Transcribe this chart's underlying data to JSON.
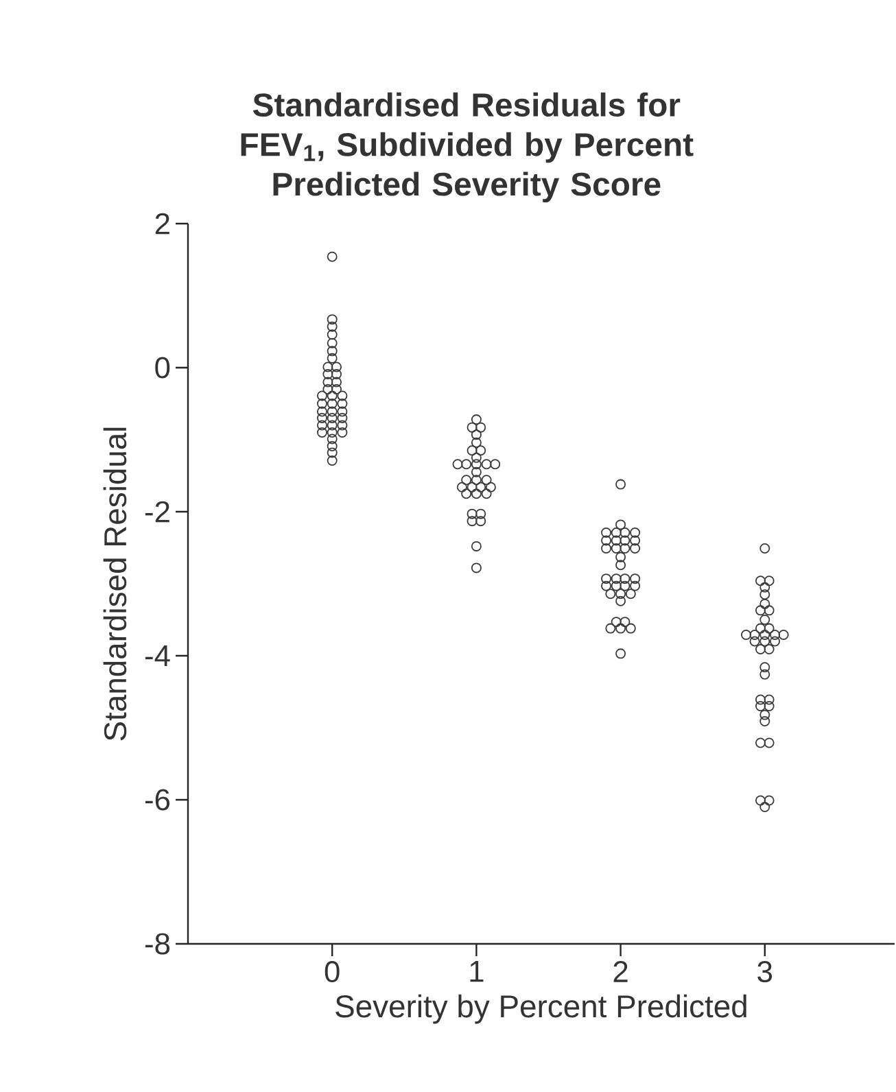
{
  "chart_data": {
    "type": "scatter",
    "title": "Standardised Residuals for FEV$_{1}$, Subdivided by Percent Predicted Severity Score",
    "xlabel": "Severity by Percent Predicted",
    "ylabel": "Standardised Residual",
    "xlim": [
      -1,
      3.9
    ],
    "ylim": [
      -8,
      2
    ],
    "xticks": [
      0,
      1,
      2,
      3
    ],
    "yticks": [
      -8,
      -6,
      -4,
      -2,
      0,
      2
    ],
    "marker": "circle",
    "grid": false,
    "series": [
      {
        "color": "#3a3a3a",
        "x": [
          0,
          0,
          0,
          0,
          0,
          0,
          0,
          -0.03,
          0.03,
          -0.03,
          0.03,
          -0.03,
          0.03,
          -0.03,
          0.03,
          -0.07,
          0,
          0.07,
          -0.07,
          0,
          0.07,
          -0.07,
          0,
          0.07,
          -0.07,
          0,
          0.07,
          -0.07,
          0,
          0.07,
          -0.07,
          0,
          0.07,
          0,
          0,
          0,
          0,
          1,
          0.97,
          1.03,
          1,
          1,
          0.97,
          1.03,
          1,
          0.87,
          0.93,
          1,
          1.07,
          1.13,
          1,
          0.93,
          1,
          1.07,
          0.9,
          0.97,
          1.03,
          1.1,
          0.93,
          1,
          1.07,
          0.97,
          1.03,
          0.97,
          1.03,
          1,
          1,
          2,
          2,
          1.9,
          1.97,
          2.03,
          2.1,
          1.9,
          1.97,
          2.03,
          2.1,
          1.9,
          1.97,
          2.03,
          2.1,
          2,
          2,
          1.9,
          1.97,
          2.03,
          2.1,
          1.9,
          1.97,
          2.03,
          2.1,
          1.93,
          2,
          2.07,
          2,
          1.97,
          2.03,
          1.93,
          2,
          2.07,
          2,
          3,
          2.97,
          3.03,
          3,
          3,
          3,
          2.97,
          3.03,
          3,
          2.97,
          3.03,
          2.87,
          2.93,
          3,
          3.07,
          3.13,
          2.93,
          3,
          3.07,
          2.97,
          3.03,
          3,
          3,
          2.97,
          3.03,
          2.97,
          3.03,
          3,
          3,
          2.97,
          3.03,
          2.97,
          3.03,
          3
        ],
        "values": [
          1.54,
          0.67,
          0.57,
          0.46,
          0.34,
          0.23,
          0.13,
          0.01,
          0.01,
          -0.09,
          -0.09,
          -0.2,
          -0.2,
          -0.3,
          -0.3,
          -0.39,
          -0.39,
          -0.39,
          -0.5,
          -0.5,
          -0.5,
          -0.61,
          -0.61,
          -0.61,
          -0.7,
          -0.7,
          -0.7,
          -0.8,
          -0.8,
          -0.8,
          -0.9,
          -0.9,
          -0.9,
          -0.99,
          -1.09,
          -1.18,
          -1.29,
          -0.72,
          -0.83,
          -0.83,
          -0.93,
          -1.04,
          -1.15,
          -1.15,
          -1.25,
          -1.34,
          -1.34,
          -1.34,
          -1.34,
          -1.34,
          -1.45,
          -1.56,
          -1.56,
          -1.56,
          -1.66,
          -1.66,
          -1.66,
          -1.66,
          -1.75,
          -1.75,
          -1.75,
          -2.03,
          -2.03,
          -2.13,
          -2.13,
          -2.48,
          -2.78,
          -1.62,
          -2.18,
          -2.29,
          -2.29,
          -2.29,
          -2.29,
          -2.4,
          -2.4,
          -2.4,
          -2.4,
          -2.51,
          -2.51,
          -2.51,
          -2.51,
          -2.63,
          -2.74,
          -2.93,
          -2.93,
          -2.93,
          -2.93,
          -3.03,
          -3.03,
          -3.03,
          -3.03,
          -3.14,
          -3.14,
          -3.14,
          -3.24,
          -3.53,
          -3.53,
          -3.62,
          -3.62,
          -3.62,
          -3.97,
          -2.51,
          -2.96,
          -2.96,
          -3.05,
          -3.15,
          -3.28,
          -3.37,
          -3.37,
          -3.5,
          -3.62,
          -3.62,
          -3.71,
          -3.71,
          -3.71,
          -3.71,
          -3.71,
          -3.8,
          -3.8,
          -3.8,
          -3.91,
          -3.91,
          -4.16,
          -4.26,
          -4.61,
          -4.61,
          -4.7,
          -4.7,
          -4.82,
          -4.91,
          -5.21,
          -5.21,
          -6.01,
          -6.01,
          -6.1
        ]
      }
    ]
  }
}
